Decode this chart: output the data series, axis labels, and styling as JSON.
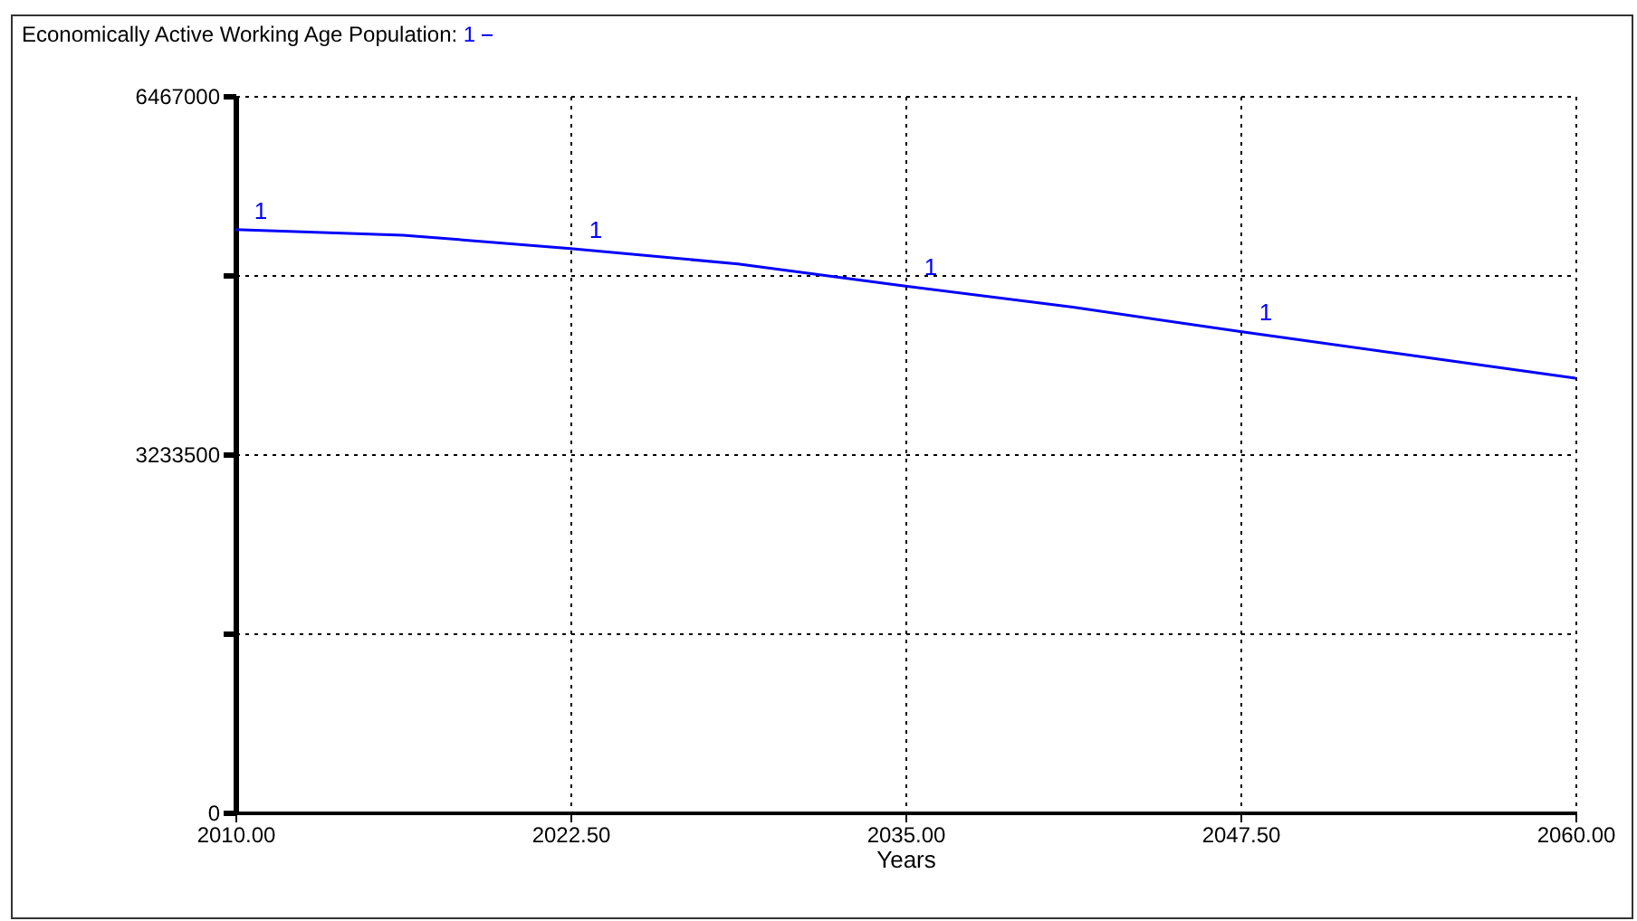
{
  "chart_data": {
    "type": "line",
    "title": "Economically Active Working Age Population:",
    "xlabel": "Years",
    "x": [
      2010,
      2016.25,
      2022.5,
      2028.75,
      2035,
      2041.25,
      2047.5,
      2053.75,
      2060
    ],
    "series": [
      {
        "name": "1",
        "color": "#0000ff",
        "values": [
          5260000,
          5210000,
          5090000,
          4950000,
          4750000,
          4560000,
          4340000,
          4130000,
          3920000
        ]
      }
    ],
    "xlim": [
      2010,
      2060
    ],
    "xticks": [
      {
        "value": 2010,
        "label": "2010.00"
      },
      {
        "value": 2022.5,
        "label": "2022.50"
      },
      {
        "value": 2035,
        "label": "2035.00"
      },
      {
        "value": 2047.5,
        "label": "2047.50"
      },
      {
        "value": 2060,
        "label": "2060.00"
      }
    ],
    "ylim": [
      0,
      6467000
    ],
    "yticks": [
      0,
      {
        "value": 1616750,
        "label": null
      },
      3233500,
      {
        "value": 4850250,
        "label": null
      },
      6467000
    ],
    "grid": true,
    "legend": "top left",
    "marker": "none",
    "line_style": "solid"
  }
}
